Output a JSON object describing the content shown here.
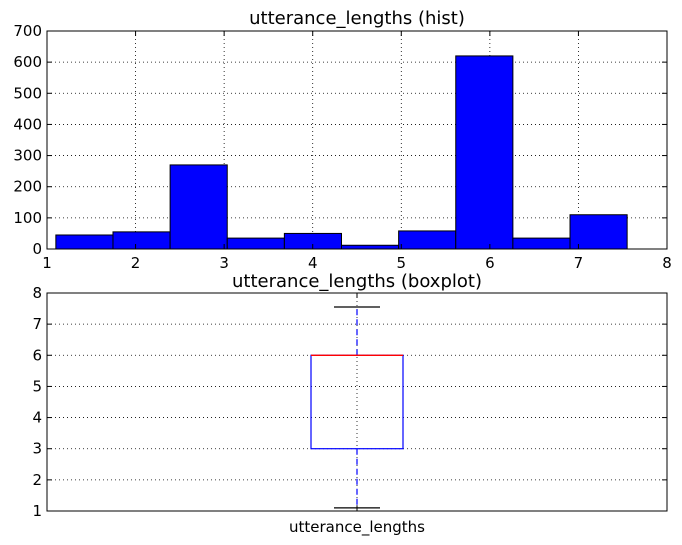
{
  "chart_data": [
    {
      "type": "bar",
      "title": "utterance_lengths (hist)",
      "bins": [
        {
          "x0": 1.1,
          "x1": 1.745,
          "count": 45
        },
        {
          "x0": 1.745,
          "x1": 2.39,
          "count": 55
        },
        {
          "x0": 2.39,
          "x1": 3.035,
          "count": 270
        },
        {
          "x0": 3.035,
          "x1": 3.68,
          "count": 35
        },
        {
          "x0": 3.68,
          "x1": 4.325,
          "count": 50
        },
        {
          "x0": 4.325,
          "x1": 4.97,
          "count": 12
        },
        {
          "x0": 4.97,
          "x1": 5.615,
          "count": 58
        },
        {
          "x0": 5.615,
          "x1": 6.26,
          "count": 620
        },
        {
          "x0": 6.26,
          "x1": 6.905,
          "count": 35
        },
        {
          "x0": 6.905,
          "x1": 7.55,
          "count": 110
        }
      ],
      "xlim": [
        1,
        8
      ],
      "ylim": [
        0,
        700
      ],
      "xticks": [
        1,
        2,
        3,
        4,
        5,
        6,
        7,
        8
      ],
      "yticks": [
        0,
        100,
        200,
        300,
        400,
        500,
        600,
        700
      ],
      "grid": true,
      "bar_color": "#0000ff"
    },
    {
      "type": "boxplot",
      "title": "utterance_lengths (boxplot)",
      "category": "utterance_lengths",
      "whisker_low": 1.1,
      "q1": 3,
      "median": 6,
      "q3": 6,
      "whisker_high": 7.55,
      "ylim": [
        1,
        8
      ],
      "yticks": [
        1,
        2,
        3,
        4,
        5,
        6,
        7,
        8
      ],
      "grid": true,
      "box_color": "#0000ff",
      "median_color": "#ff0000"
    }
  ]
}
